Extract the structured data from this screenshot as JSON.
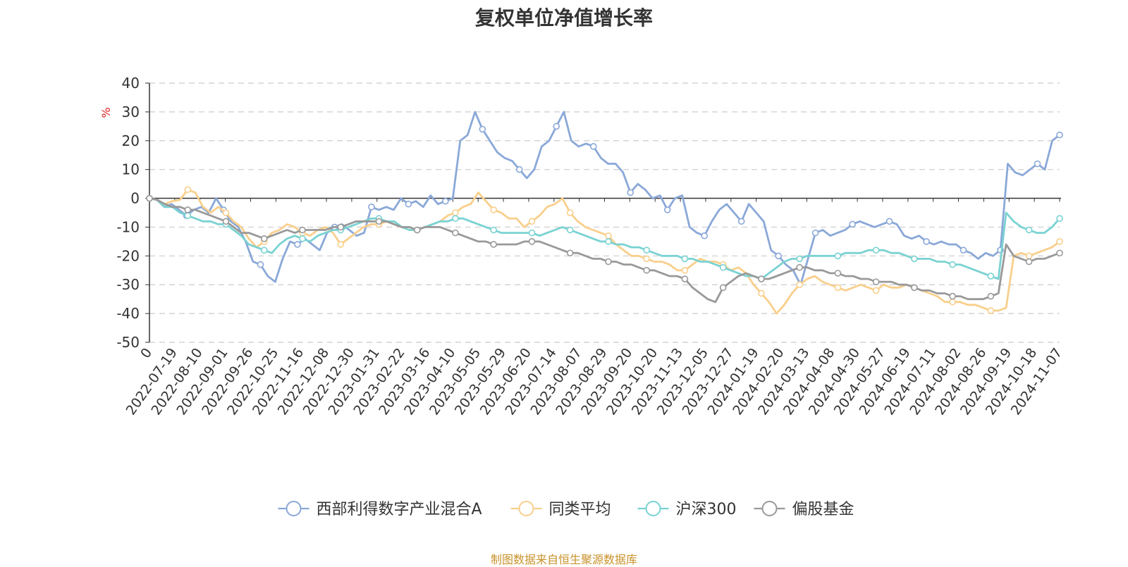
{
  "chart_data": {
    "type": "line",
    "title": "复权单位净值增长率",
    "ylabel": "%",
    "ylim": [
      -50,
      40
    ],
    "yticks": [
      40,
      30,
      20,
      10,
      0,
      -10,
      -20,
      -30,
      -40,
      -50
    ],
    "x_ticks": [
      "0",
      "2022-07-19",
      "2022-08-10",
      "2022-09-01",
      "2022-09-26",
      "2022-10-25",
      "2022-11-16",
      "2022-12-08",
      "2022-12-30",
      "2023-01-31",
      "2023-02-22",
      "2023-03-16",
      "2023-04-10",
      "2023-05-05",
      "2023-05-29",
      "2023-06-20",
      "2023-07-14",
      "2023-08-07",
      "2023-08-29",
      "2023-09-20",
      "2023-10-20",
      "2023-11-13",
      "2023-12-05",
      "2023-12-27",
      "2024-01-19",
      "2024-02-20",
      "2024-03-13",
      "2024-04-08",
      "2024-04-30",
      "2024-05-27",
      "2024-06-19",
      "2024-07-11",
      "2024-08-02",
      "2024-08-26",
      "2024-09-19",
      "2024-10-18",
      "2024-11-07"
    ],
    "grid": true,
    "legend_position": "bottom",
    "series": [
      {
        "name": "西部利得数字产业混合A",
        "color": "#8aa8d8",
        "values": [
          0,
          -0.5,
          -3,
          -2,
          -4,
          -6,
          -4,
          -3,
          -5,
          0,
          -4,
          -8,
          -10,
          -15,
          -22,
          -23,
          -27,
          -29,
          -21,
          -15,
          -16,
          -14,
          -16,
          -18,
          -12,
          -10,
          -9,
          -11,
          -13,
          -12,
          -3,
          -4,
          -3,
          -4,
          0,
          -2,
          -1,
          -3,
          1,
          -2,
          -1,
          0,
          20,
          22,
          30,
          24,
          20,
          16,
          14,
          13,
          10,
          7,
          10,
          18,
          20,
          25,
          30,
          20,
          18,
          19,
          18,
          14,
          12,
          12,
          9,
          2,
          5,
          3,
          0,
          1,
          -4,
          0,
          1,
          -10,
          -12,
          -13,
          -8,
          -4,
          -2,
          -5,
          -8,
          -2,
          -5,
          -8,
          -18,
          -20,
          -23,
          -25,
          -30,
          -21,
          -12,
          -11,
          -13,
          -12,
          -11,
          -9,
          -8,
          -9,
          -10,
          -9,
          -8,
          -9,
          -13,
          -14,
          -13,
          -15,
          -16,
          -15,
          -16,
          -16,
          -18,
          -19,
          -21,
          -19,
          -20,
          -18,
          12,
          9,
          8,
          10,
          12,
          10,
          20,
          22
        ]
      },
      {
        "name": "同类平均",
        "color": "#f9cf8c",
        "values": [
          0,
          -0.5,
          -2,
          -1,
          -0.5,
          3,
          2,
          -3,
          -5,
          -3,
          -5,
          -8,
          -10,
          -14,
          -17,
          -15,
          -12,
          -11,
          -9,
          -10,
          -12,
          -13,
          -11,
          -10,
          -12,
          -16,
          -14,
          -12,
          -10,
          -9,
          -9,
          -8,
          -9,
          -10,
          -11,
          -11,
          -10,
          -9,
          -8,
          -6,
          -5,
          -3,
          -2,
          2,
          -1,
          -4,
          -5,
          -7,
          -7,
          -10,
          -8,
          -6,
          -3,
          -2,
          0,
          -5,
          -8,
          -10,
          -11,
          -12,
          -13,
          -16,
          -18,
          -20,
          -20,
          -21,
          -22,
          -22,
          -23,
          -25,
          -25,
          -23,
          -21,
          -22,
          -22,
          -23,
          -25,
          -24,
          -26,
          -30,
          -33,
          -36,
          -40,
          -37,
          -33,
          -30,
          -28,
          -27,
          -29,
          -30,
          -31,
          -32,
          -31,
          -30,
          -31,
          -32,
          -30,
          -31,
          -31,
          -30,
          -31,
          -32,
          -33,
          -34,
          -36,
          -36,
          -36,
          -37,
          -37,
          -38,
          -39,
          -39,
          -38,
          -20,
          -19,
          -20,
          -19,
          -18,
          -17,
          -15
        ]
      },
      {
        "name": "沪深300",
        "color": "#7ad2d2",
        "values": [
          0,
          -0.5,
          -3,
          -3,
          -5,
          -6,
          -7,
          -8,
          -8,
          -9,
          -9,
          -11,
          -13,
          -16,
          -17,
          -18,
          -19,
          -16,
          -14,
          -13,
          -14,
          -15,
          -13,
          -12,
          -11,
          -11,
          -10,
          -9,
          -8,
          -7,
          -7,
          -8,
          -8,
          -10,
          -11,
          -11,
          -10,
          -9,
          -8,
          -8,
          -7,
          -7,
          -8,
          -9,
          -10,
          -11,
          -12,
          -12,
          -12,
          -12,
          -12,
          -13,
          -12,
          -11,
          -10,
          -11,
          -12,
          -13,
          -14,
          -15,
          -15,
          -16,
          -16,
          -17,
          -17,
          -18,
          -19,
          -20,
          -20,
          -20,
          -21,
          -21,
          -22,
          -22,
          -23,
          -24,
          -25,
          -26,
          -27,
          -27,
          -28,
          -26,
          -24,
          -22,
          -21,
          -21,
          -20,
          -20,
          -20,
          -20,
          -20,
          -19,
          -19,
          -19,
          -18,
          -18,
          -18,
          -19,
          -19,
          -20,
          -21,
          -21,
          -21,
          -22,
          -22,
          -23,
          -23,
          -24,
          -25,
          -26,
          -27,
          -28,
          -5,
          -8,
          -10,
          -11,
          -12,
          -12,
          -10,
          -7
        ]
      },
      {
        "name": "偏股基金",
        "color": "#999999",
        "values": [
          0,
          -0.5,
          -2,
          -3,
          -3,
          -4,
          -4,
          -5,
          -6,
          -7,
          -8,
          -10,
          -12,
          -12,
          -13,
          -14,
          -13,
          -12,
          -11,
          -12,
          -11,
          -11,
          -11,
          -11,
          -10,
          -10,
          -9,
          -8,
          -8,
          -8,
          -8,
          -8,
          -9,
          -10,
          -10,
          -11,
          -10,
          -10,
          -10,
          -11,
          -12,
          -13,
          -14,
          -15,
          -15,
          -16,
          -16,
          -16,
          -16,
          -15,
          -15,
          -15,
          -16,
          -17,
          -18,
          -19,
          -19,
          -20,
          -21,
          -21,
          -22,
          -22,
          -23,
          -23,
          -24,
          -25,
          -25,
          -26,
          -27,
          -27,
          -28,
          -31,
          -33,
          -35,
          -36,
          -31,
          -29,
          -27,
          -26,
          -27,
          -28,
          -28,
          -27,
          -26,
          -25,
          -24,
          -24,
          -25,
          -25,
          -26,
          -26,
          -27,
          -27,
          -28,
          -28,
          -29,
          -29,
          -29,
          -30,
          -30,
          -31,
          -32,
          -32,
          -33,
          -33,
          -34,
          -34,
          -35,
          -35,
          -35,
          -34,
          -33,
          -16,
          -20,
          -21,
          -22,
          -21,
          -21,
          -20,
          -19
        ]
      }
    ],
    "source_note": "制图数据来自恒生聚源数据库"
  }
}
